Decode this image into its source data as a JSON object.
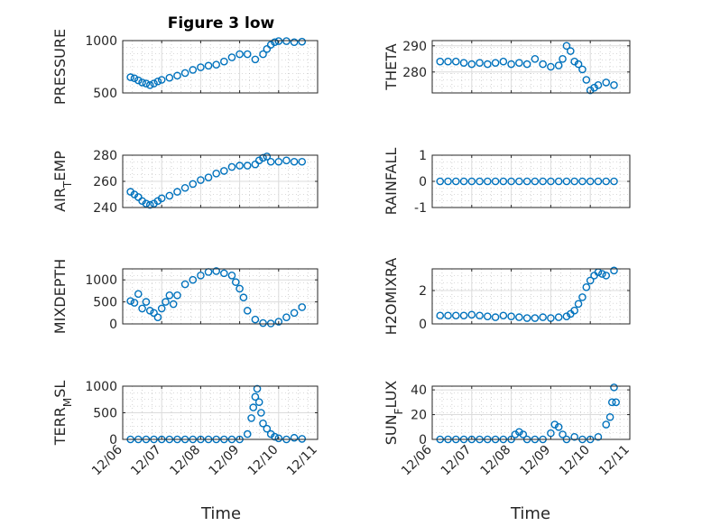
{
  "figure": {
    "title": "Figure 3 low",
    "xlabel": "Time"
  },
  "colors": {
    "marker": "#0072BD",
    "axis": "#262626",
    "grid": "#dcdcdc",
    "grid_minor": "#b4b4b4"
  },
  "chart_data": [
    {
      "type": "scatter",
      "title": "Figure 3 low",
      "ylabel": "PRESSURE",
      "ylabel_sub": null,
      "ylim": [
        500,
        1000
      ],
      "yticks": [
        500,
        1000
      ],
      "ytick_labels": [
        "500",
        "1000"
      ],
      "xlim": [
        0,
        5
      ],
      "xticks": [
        0,
        1,
        2,
        3,
        4,
        5
      ],
      "xtick_labels": [
        "12/06",
        "12/07",
        "12/08",
        "12/09",
        "12/10",
        "12/11"
      ],
      "show_xtick_labels": false,
      "grid": true,
      "series": [
        {
          "x": [
            0.2,
            0.3,
            0.4,
            0.5,
            0.6,
            0.7,
            0.8,
            0.9,
            1.0,
            1.2,
            1.4,
            1.6,
            1.8,
            2.0,
            2.2,
            2.4,
            2.6,
            2.8,
            3.0,
            3.2,
            3.4,
            3.6,
            3.7,
            3.8,
            3.9,
            4.0,
            4.2,
            4.4,
            4.6
          ],
          "y": [
            650,
            640,
            620,
            600,
            590,
            575,
            590,
            610,
            625,
            645,
            665,
            690,
            720,
            745,
            760,
            770,
            800,
            840,
            870,
            870,
            820,
            870,
            920,
            960,
            985,
            995,
            995,
            985,
            990
          ]
        }
      ]
    },
    {
      "type": "scatter",
      "title": "",
      "ylabel": "THETA",
      "ylabel_sub": null,
      "ylim": [
        272,
        292
      ],
      "yticks": [
        280,
        290
      ],
      "ytick_labels": [
        "280",
        "290"
      ],
      "xlim": [
        0,
        5
      ],
      "xticks": [
        0,
        1,
        2,
        3,
        4,
        5
      ],
      "xtick_labels": [
        "12/06",
        "12/07",
        "12/08",
        "12/09",
        "12/10",
        "12/11"
      ],
      "show_xtick_labels": false,
      "grid": true,
      "series": [
        {
          "x": [
            0.2,
            0.4,
            0.6,
            0.8,
            1.0,
            1.2,
            1.4,
            1.6,
            1.8,
            2.0,
            2.2,
            2.4,
            2.6,
            2.8,
            3.0,
            3.2,
            3.3,
            3.4,
            3.5,
            3.6,
            3.7,
            3.8,
            3.9,
            4.0,
            4.1,
            4.2,
            4.4,
            4.6
          ],
          "y": [
            284,
            284,
            284,
            283.5,
            283,
            283.5,
            283,
            283.5,
            284,
            283,
            283.5,
            283,
            285,
            283,
            282,
            282.5,
            285,
            290,
            288,
            284,
            283,
            281,
            277,
            273,
            274,
            275,
            276,
            275
          ]
        }
      ]
    },
    {
      "type": "scatter",
      "title": "",
      "ylabel": "AIR",
      "ylabel_sub": "T",
      "ylabel_rest": "EMP",
      "ylim": [
        240,
        280
      ],
      "yticks": [
        240,
        260,
        280
      ],
      "ytick_labels": [
        "240",
        "260",
        "280"
      ],
      "xlim": [
        0,
        5
      ],
      "xticks": [
        0,
        1,
        2,
        3,
        4,
        5
      ],
      "xtick_labels": [
        "12/06",
        "12/07",
        "12/08",
        "12/09",
        "12/10",
        "12/11"
      ],
      "show_xtick_labels": false,
      "grid": true,
      "series": [
        {
          "x": [
            0.2,
            0.3,
            0.4,
            0.5,
            0.6,
            0.7,
            0.8,
            0.9,
            1.0,
            1.2,
            1.4,
            1.6,
            1.8,
            2.0,
            2.2,
            2.4,
            2.6,
            2.8,
            3.0,
            3.2,
            3.4,
            3.5,
            3.6,
            3.7,
            3.8,
            4.0,
            4.2,
            4.4,
            4.6
          ],
          "y": [
            252,
            250,
            248,
            245,
            243,
            242,
            243,
            245,
            247,
            249,
            252,
            255,
            258,
            261,
            263,
            266,
            268,
            271,
            272,
            272,
            273,
            276,
            278,
            279,
            275,
            275,
            276,
            275,
            275
          ]
        }
      ]
    },
    {
      "type": "scatter",
      "title": "",
      "ylabel": "RAINFALL",
      "ylabel_sub": null,
      "ylim": [
        -1,
        1
      ],
      "yticks": [
        -1,
        0,
        1
      ],
      "ytick_labels": [
        "-1",
        "0",
        "1"
      ],
      "xlim": [
        0,
        5
      ],
      "xticks": [
        0,
        1,
        2,
        3,
        4,
        5
      ],
      "xtick_labels": [
        "12/06",
        "12/07",
        "12/08",
        "12/09",
        "12/10",
        "12/11"
      ],
      "show_xtick_labels": false,
      "grid": true,
      "series": [
        {
          "x": [
            0.2,
            0.4,
            0.6,
            0.8,
            1.0,
            1.2,
            1.4,
            1.6,
            1.8,
            2.0,
            2.2,
            2.4,
            2.6,
            2.8,
            3.0,
            3.2,
            3.4,
            3.6,
            3.8,
            4.0,
            4.2,
            4.4,
            4.6
          ],
          "y": [
            0,
            0,
            0,
            0,
            0,
            0,
            0,
            0,
            0,
            0,
            0,
            0,
            0,
            0,
            0,
            0,
            0,
            0,
            0,
            0,
            0,
            0,
            0
          ]
        }
      ]
    },
    {
      "type": "scatter",
      "title": "",
      "ylabel": "MIXDEPTH",
      "ylabel_sub": null,
      "ylim": [
        0,
        1250
      ],
      "yticks": [
        0,
        500,
        1000
      ],
      "ytick_labels": [
        "0",
        "500",
        "1000"
      ],
      "xlim": [
        0,
        5
      ],
      "xticks": [
        0,
        1,
        2,
        3,
        4,
        5
      ],
      "xtick_labels": [
        "12/06",
        "12/07",
        "12/08",
        "12/09",
        "12/10",
        "12/11"
      ],
      "show_xtick_labels": false,
      "grid": true,
      "series": [
        {
          "x": [
            0.2,
            0.3,
            0.4,
            0.5,
            0.6,
            0.7,
            0.8,
            0.9,
            1.0,
            1.1,
            1.2,
            1.3,
            1.4,
            1.6,
            1.8,
            2.0,
            2.2,
            2.4,
            2.6,
            2.8,
            2.9,
            3.0,
            3.1,
            3.2,
            3.4,
            3.6,
            3.8,
            4.0,
            4.2,
            4.4,
            4.6
          ],
          "y": [
            520,
            480,
            680,
            350,
            500,
            300,
            250,
            150,
            350,
            500,
            650,
            450,
            650,
            900,
            1000,
            1100,
            1180,
            1200,
            1150,
            1100,
            950,
            800,
            600,
            300,
            100,
            20,
            10,
            50,
            150,
            250,
            380
          ]
        }
      ]
    },
    {
      "type": "scatter",
      "title": "",
      "ylabel": "H2OMIXRA",
      "ylabel_sub": null,
      "ylim": [
        0,
        3.3
      ],
      "yticks": [
        0,
        2
      ],
      "ytick_labels": [
        "0",
        "2"
      ],
      "xlim": [
        0,
        5
      ],
      "xticks": [
        0,
        1,
        2,
        3,
        4,
        5
      ],
      "xtick_labels": [
        "12/06",
        "12/07",
        "12/08",
        "12/09",
        "12/10",
        "12/11"
      ],
      "show_xtick_labels": false,
      "grid": true,
      "series": [
        {
          "x": [
            0.2,
            0.4,
            0.6,
            0.8,
            1.0,
            1.2,
            1.4,
            1.6,
            1.8,
            2.0,
            2.2,
            2.4,
            2.6,
            2.8,
            3.0,
            3.2,
            3.4,
            3.5,
            3.6,
            3.7,
            3.8,
            3.9,
            4.0,
            4.1,
            4.2,
            4.3,
            4.4,
            4.6
          ],
          "y": [
            0.5,
            0.5,
            0.5,
            0.5,
            0.55,
            0.5,
            0.45,
            0.4,
            0.5,
            0.45,
            0.4,
            0.35,
            0.35,
            0.4,
            0.35,
            0.4,
            0.45,
            0.6,
            0.8,
            1.2,
            1.6,
            2.2,
            2.6,
            2.9,
            3.1,
            3.0,
            2.9,
            3.2
          ]
        }
      ]
    },
    {
      "type": "scatter",
      "title": "",
      "ylabel": "TERR",
      "ylabel_sub": "M",
      "ylabel_rest": "SL",
      "ylim": [
        0,
        1000
      ],
      "yticks": [
        0,
        500,
        1000
      ],
      "ytick_labels": [
        "0",
        "500",
        "1000"
      ],
      "xlim": [
        0,
        5
      ],
      "xticks": [
        0,
        1,
        2,
        3,
        4,
        5
      ],
      "xtick_labels": [
        "12/06",
        "12/07",
        "12/08",
        "12/09",
        "12/10",
        "12/11"
      ],
      "show_xtick_labels": true,
      "grid": true,
      "series": [
        {
          "x": [
            0.2,
            0.4,
            0.6,
            0.8,
            1.0,
            1.2,
            1.4,
            1.6,
            1.8,
            2.0,
            2.2,
            2.4,
            2.6,
            2.8,
            3.0,
            3.2,
            3.3,
            3.35,
            3.4,
            3.45,
            3.5,
            3.55,
            3.6,
            3.7,
            3.8,
            3.9,
            4.0,
            4.2,
            4.4,
            4.6
          ],
          "y": [
            0,
            0,
            0,
            0,
            0,
            0,
            0,
            0,
            0,
            0,
            0,
            0,
            0,
            0,
            0,
            100,
            400,
            600,
            800,
            950,
            700,
            500,
            300,
            200,
            100,
            50,
            20,
            0,
            30,
            10
          ]
        }
      ]
    },
    {
      "type": "scatter",
      "title": "",
      "ylabel": "SUN",
      "ylabel_sub": "F",
      "ylabel_rest": "LUX",
      "ylim": [
        0,
        43
      ],
      "yticks": [
        0,
        20,
        40
      ],
      "ytick_labels": [
        "0",
        "20",
        "40"
      ],
      "xlim": [
        0,
        5
      ],
      "xticks": [
        0,
        1,
        2,
        3,
        4,
        5
      ],
      "xtick_labels": [
        "12/06",
        "12/07",
        "12/08",
        "12/09",
        "12/10",
        "12/11"
      ],
      "show_xtick_labels": true,
      "grid": true,
      "series": [
        {
          "x": [
            0.2,
            0.4,
            0.6,
            0.8,
            1.0,
            1.2,
            1.4,
            1.6,
            1.8,
            2.0,
            2.1,
            2.2,
            2.3,
            2.4,
            2.6,
            2.8,
            3.0,
            3.1,
            3.2,
            3.3,
            3.4,
            3.6,
            3.8,
            4.0,
            4.2,
            4.4,
            4.5,
            4.55,
            4.6,
            4.65
          ],
          "y": [
            0,
            0,
            0,
            0,
            0,
            0,
            0,
            0,
            0,
            0,
            4,
            6,
            4,
            0,
            0,
            0,
            5,
            12,
            10,
            4,
            0,
            2,
            0,
            0,
            2,
            12,
            18,
            30,
            42,
            30
          ]
        }
      ]
    }
  ]
}
